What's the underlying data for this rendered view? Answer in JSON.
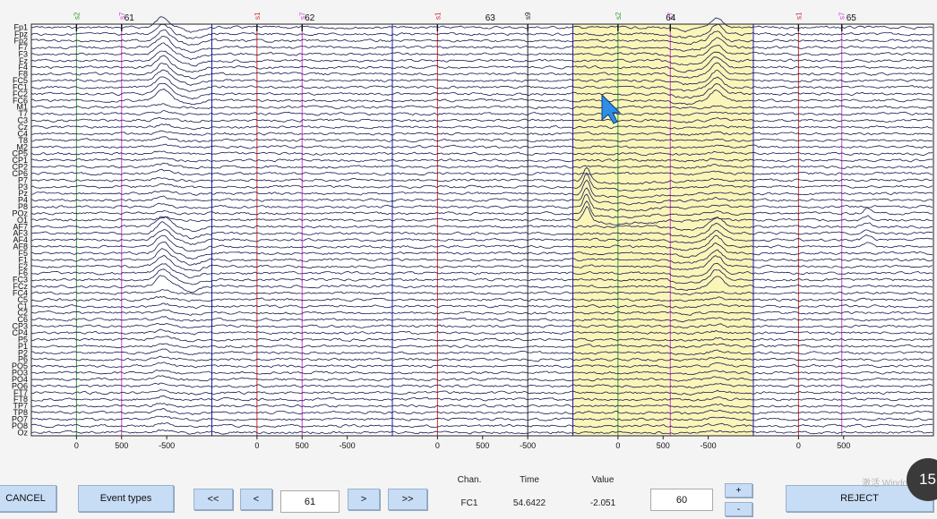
{
  "viewer": {
    "channels": [
      "Fp1",
      "Fpz",
      "Fp2",
      "F7",
      "F3",
      "Fz",
      "F4",
      "F8",
      "FC5",
      "FC1",
      "FC2",
      "FC6",
      "M1",
      "T7",
      "C3",
      "Cz",
      "C4",
      "T8",
      "M2",
      "CP5",
      "CP1",
      "CP2",
      "CP6",
      "P7",
      "P3",
      "Pz",
      "P4",
      "P8",
      "POz",
      "O1",
      "AF7",
      "AF3",
      "AF4",
      "AF8",
      "F5",
      "F1",
      "F2",
      "F6",
      "FC3",
      "FCz",
      "FC4",
      "C5",
      "C1",
      "C2",
      "C6",
      "CP3",
      "CP4",
      "P5",
      "P1",
      "P2",
      "P6",
      "PO5",
      "PO3",
      "PO4",
      "PO6",
      "FT7",
      "FT8",
      "TP7",
      "TP8",
      "PO7",
      "PO8",
      "Oz"
    ],
    "epochs": [
      {
        "label": "61",
        "ticks": [
          "0",
          "500",
          "-500"
        ]
      },
      {
        "label": "62",
        "ticks": [
          "0",
          "500",
          "-500"
        ]
      },
      {
        "label": "63",
        "ticks": [
          "0",
          "500",
          "-500"
        ]
      },
      {
        "label": "64",
        "ticks": [
          "0",
          "500",
          "-500"
        ]
      },
      {
        "label": "65",
        "ticks": [
          "0",
          "500"
        ]
      }
    ],
    "events": [
      {
        "epoch": 0,
        "name": "s2",
        "latency_ms": 0,
        "color": "#2e9d2e"
      },
      {
        "epoch": 0,
        "name": "s7",
        "latency_ms": 500,
        "color": "#d23fd2"
      },
      {
        "epoch": 1,
        "name": "s1",
        "latency_ms": 0,
        "color": "#d22b2b"
      },
      {
        "epoch": 1,
        "name": "s7",
        "latency_ms": 500,
        "color": "#d23fd2"
      },
      {
        "epoch": 2,
        "name": "s1",
        "latency_ms": 0,
        "color": "#d22b2b"
      },
      {
        "epoch": 2,
        "name": "s9",
        "latency_ms": 1000,
        "color": "#222222"
      },
      {
        "epoch": 3,
        "name": "s2",
        "latency_ms": 0,
        "color": "#2e9d2e"
      },
      {
        "epoch": 3,
        "name": "s7",
        "latency_ms": 580,
        "color": "#d23fd2"
      },
      {
        "epoch": 4,
        "name": "s1",
        "latency_ms": 0,
        "color": "#d22b2b"
      },
      {
        "epoch": 4,
        "name": "s7",
        "latency_ms": 480,
        "color": "#d23fd2"
      }
    ],
    "rejected_epochs": [
      3
    ],
    "highlight_color": "#fbf5b8",
    "trace_color": "#151a50",
    "boundary_color": "#1a1aa8"
  },
  "controls": {
    "cancel_label": "CANCEL",
    "event_types_label": "Event types",
    "prev_prev_label": "<<",
    "prev_label": "<",
    "epoch_value": "61",
    "next_label": ">",
    "next_next_label": ">>",
    "chan_header": "Chan.",
    "time_header": "Time",
    "value_header": "Value",
    "chan_value": "FC1",
    "time_value": "54.6422",
    "value_value": "-2.051",
    "scale_value": "60",
    "plus_label": "+",
    "minus_label": "-",
    "reject_label": "REJECT"
  },
  "overlay": {
    "watermark_text": "激活 Windows",
    "badge_text": "15"
  }
}
